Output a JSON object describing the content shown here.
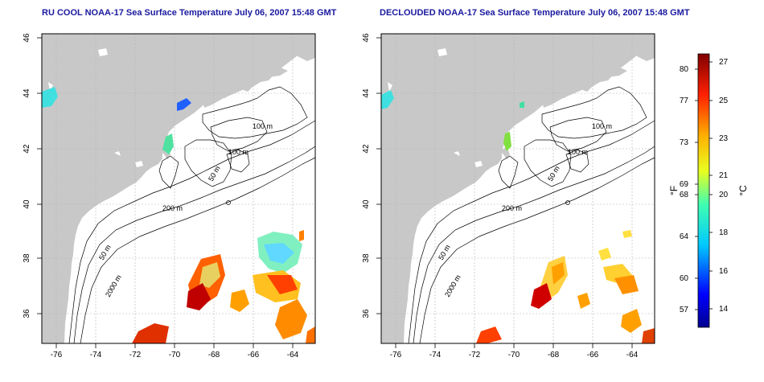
{
  "panels": [
    {
      "title": "RU COOL NOAA-17 Sea Surface Temperature July 06, 2007 15:48 GMT",
      "contour_labels": [
        "100 m",
        "100 m",
        "50 m",
        "200 m",
        "50 m",
        "2000 m"
      ]
    },
    {
      "title": "DECLOUDED NOAA-17 Sea Surface Temperature July 06, 2007 15:48 GMT",
      "contour_labels": [
        "100 m",
        "100 m",
        "50 m",
        "200 m",
        "50 m",
        "2000 m"
      ]
    }
  ],
  "axes": {
    "lon_ticks": [
      "-76",
      "-74",
      "-72",
      "-70",
      "-68",
      "-66",
      "-64"
    ],
    "lat_ticks": [
      "36",
      "38",
      "40",
      "42",
      "44",
      "46"
    ]
  },
  "colorbar": {
    "unit_f": "°F",
    "unit_c": "°C",
    "fahrenheit_ticks": [
      "80",
      "77",
      "73",
      "69",
      "68",
      "64",
      "60",
      "57"
    ],
    "celsius_ticks": [
      "27",
      "25",
      "23",
      "21",
      "20",
      "18",
      "16",
      "14"
    ]
  },
  "colors": {
    "land": "#c8c8c8",
    "ocean": "#ffffff",
    "title": "#1a1aa0",
    "grid": "#b4b4b4"
  }
}
